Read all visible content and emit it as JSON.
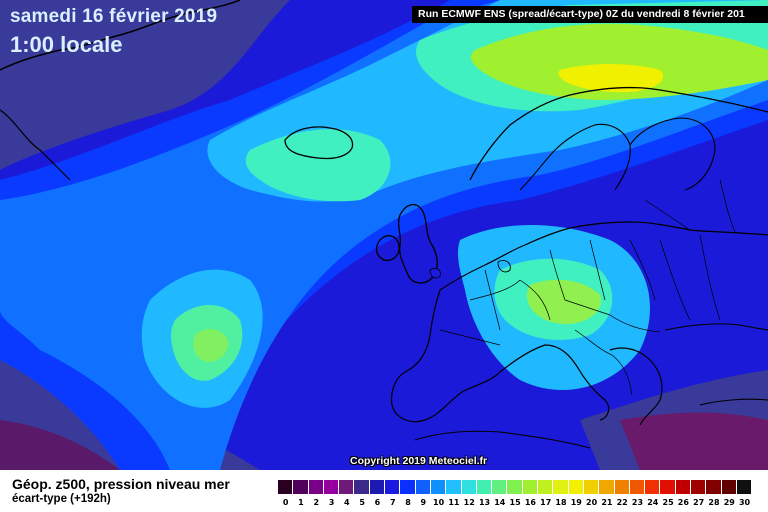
{
  "header": {
    "date": "samedi 16 février 2019",
    "time": "1:00 locale",
    "run_info": "Run ECMWF ENS (spread/écart-type) 0Z du vendredi 8 février 201"
  },
  "copyright": "Copyright 2019 Meteociel.fr",
  "legend": {
    "title": "Géop. z500, pression niveau mer",
    "subtitle": "écart-type  (+192h)",
    "ticks": [
      "0",
      "1",
      "2",
      "3",
      "4",
      "5",
      "6",
      "7",
      "8",
      "9",
      "10",
      "11",
      "12",
      "13",
      "14",
      "15",
      "16",
      "17",
      "18",
      "19",
      "20",
      "21",
      "22",
      "23",
      "24",
      "25",
      "26",
      "27",
      "28",
      "29",
      "30"
    ],
    "colors": [
      "#2a0020",
      "#50005a",
      "#7a008a",
      "#96009e",
      "#6e1a78",
      "#3c2a8a",
      "#1c1ab0",
      "#1a1ae0",
      "#0a30ff",
      "#1060ff",
      "#1090ff",
      "#20c0ff",
      "#30e0e0",
      "#40f0b0",
      "#60f080",
      "#80f050",
      "#a0f030",
      "#c0f020",
      "#e0f010",
      "#f0f000",
      "#f0d000",
      "#f0a800",
      "#f08000",
      "#f05800",
      "#f03000",
      "#e01000",
      "#c00000",
      "#a00000",
      "#800000",
      "#600000",
      "#101010"
    ]
  },
  "map": {
    "field": "écart-type géopotentiel z500",
    "ocean_color": "#1c1ccc",
    "coastline_color": "#000000"
  }
}
